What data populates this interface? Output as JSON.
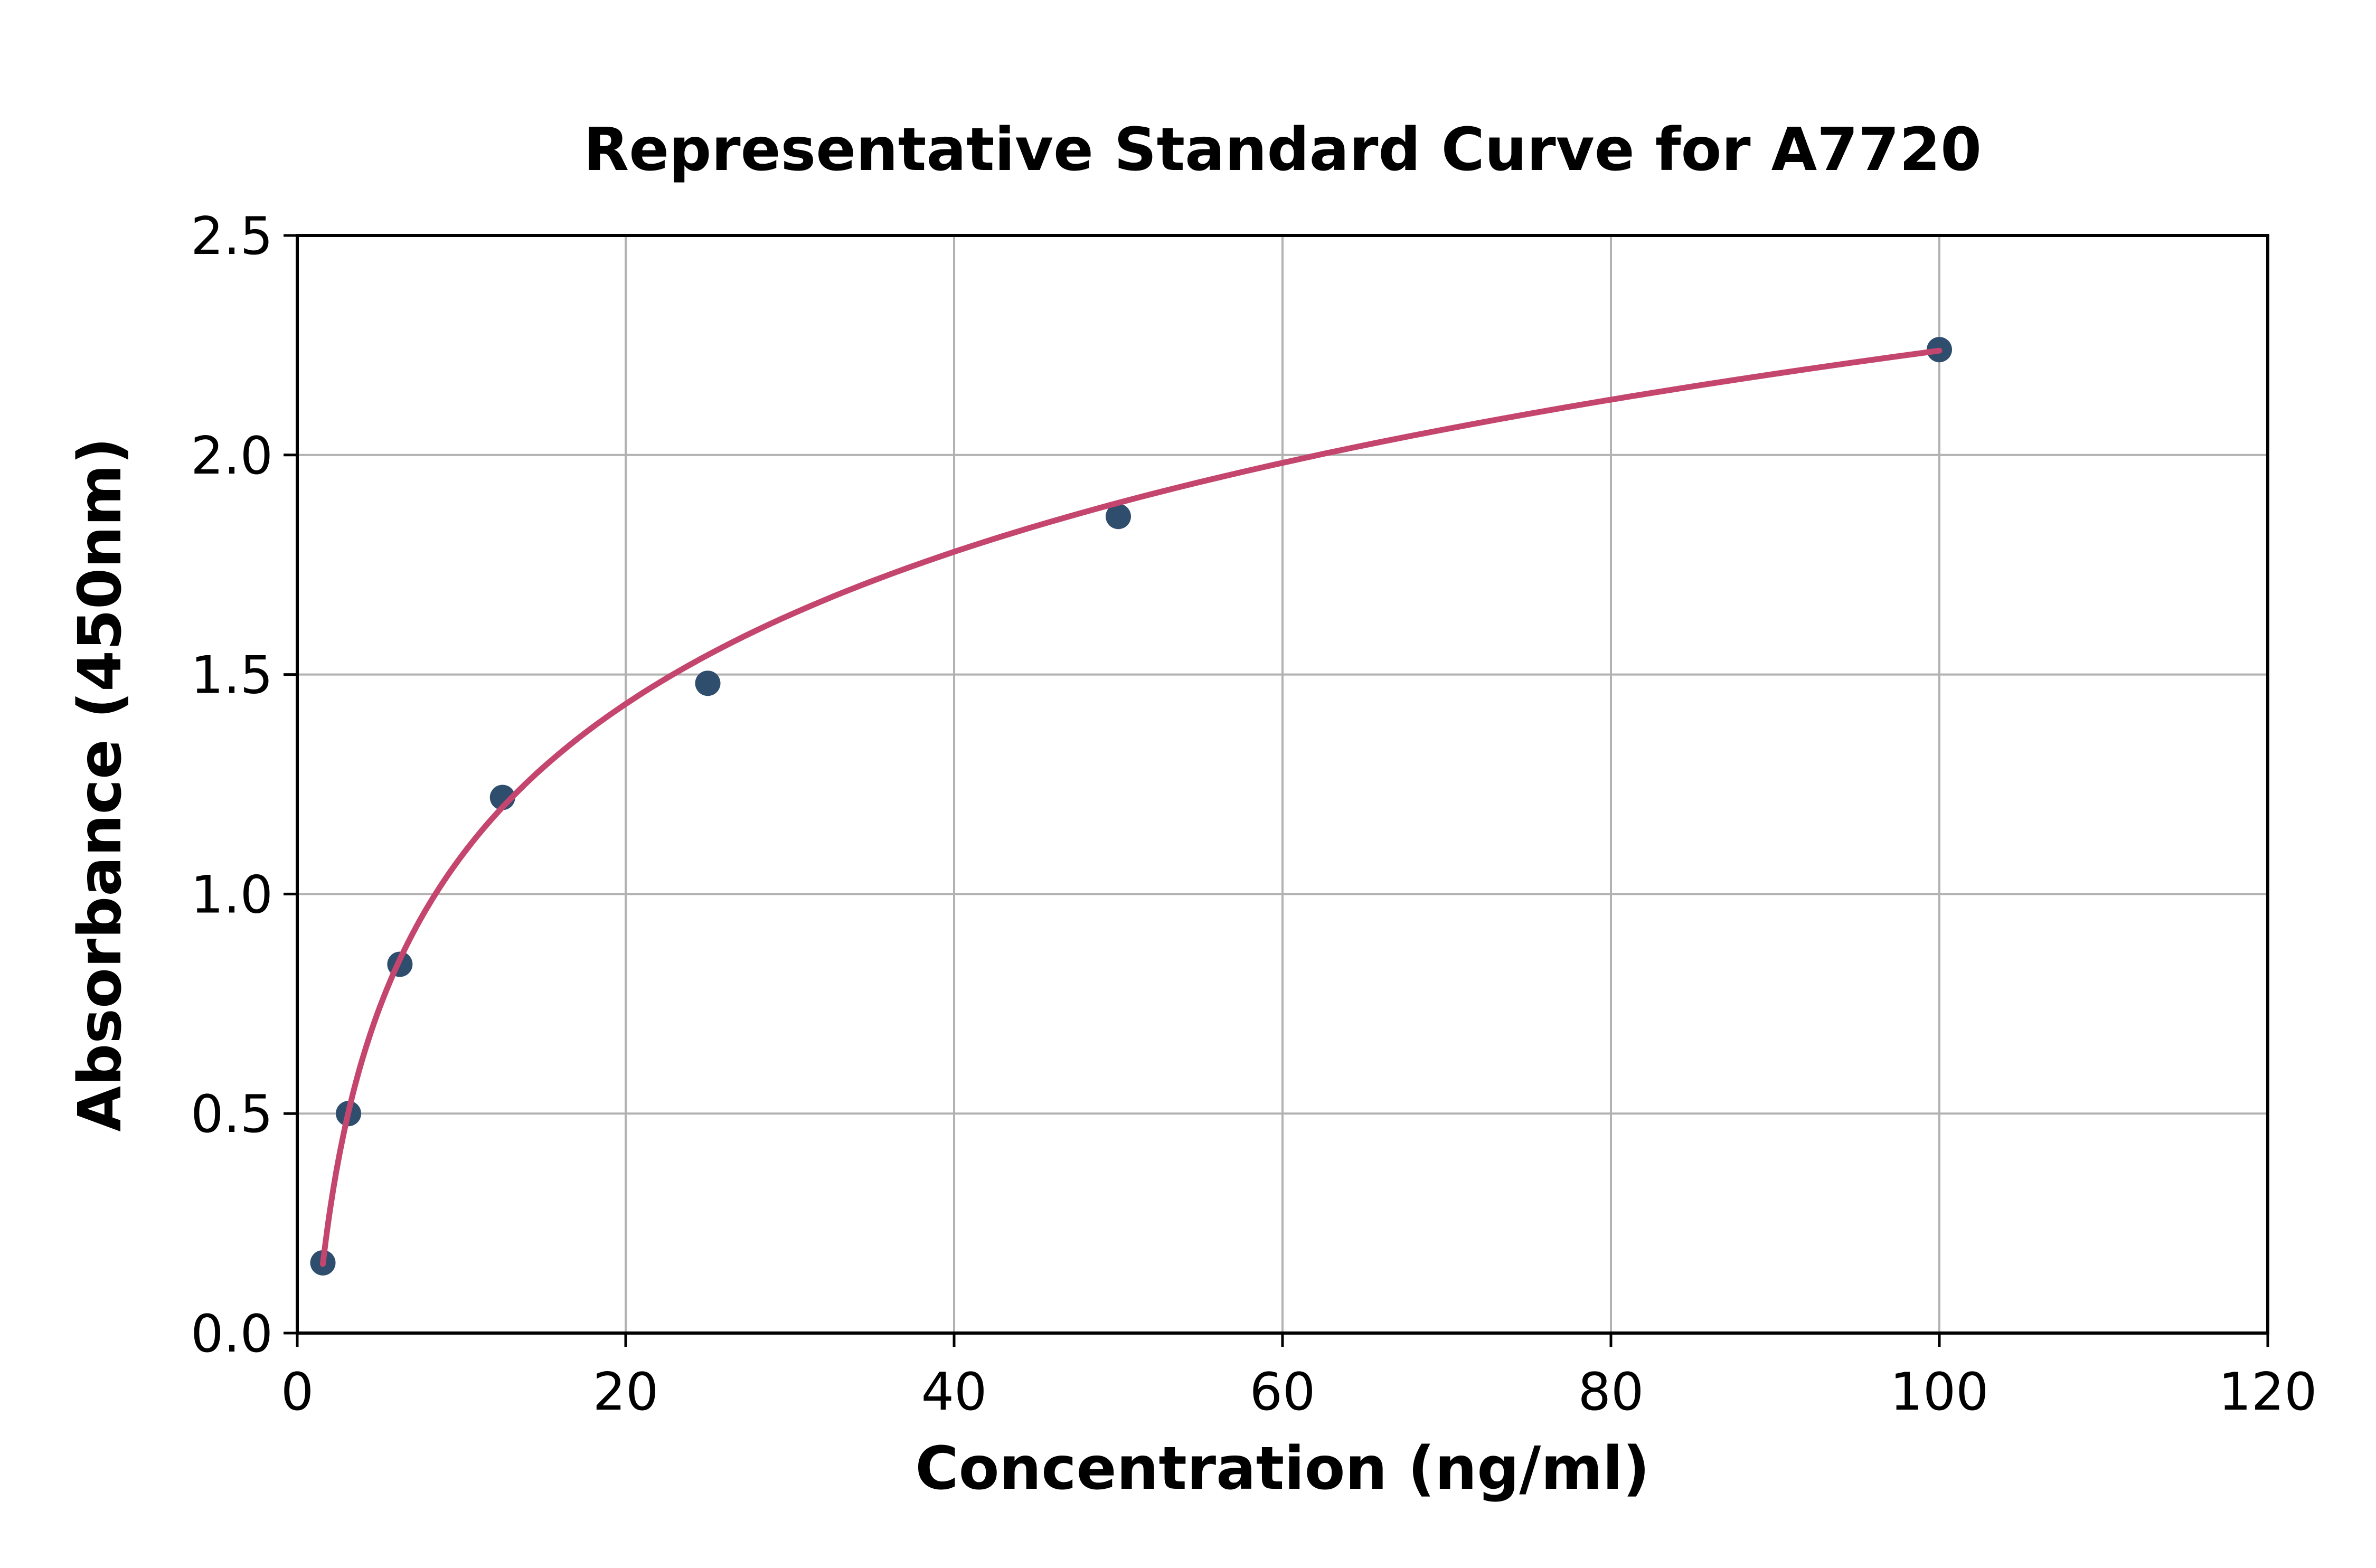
{
  "figure": {
    "background": "#ffffff"
  },
  "chart_data": {
    "type": "scatter",
    "title": "Representative Standard Curve for A7720",
    "xlabel": "Concentration (ng/ml)",
    "ylabel": "Absorbance (450nm)",
    "xlim": [
      0,
      120
    ],
    "ylim": [
      0,
      2.5
    ],
    "xticks": [
      0,
      20,
      40,
      60,
      80,
      100,
      120
    ],
    "xtick_labels": [
      "0",
      "20",
      "40",
      "60",
      "80",
      "100",
      "120"
    ],
    "yticks": [
      0,
      0.5,
      1.0,
      1.5,
      2.0,
      2.5
    ],
    "ytick_labels": [
      "0.0",
      "0.5",
      "1.0",
      "1.5",
      "2.0",
      "2.5"
    ],
    "grid": true,
    "legend": "none",
    "points": {
      "x": [
        1.56,
        3.12,
        6.25,
        12.5,
        25,
        50,
        100
      ],
      "y": [
        0.16,
        0.5,
        0.84,
        1.22,
        1.48,
        1.86,
        2.24
      ]
    },
    "fit_curve": {
      "type": "logarithmic",
      "equation": "y = a*ln(x) + b",
      "a": 0.5,
      "b": -0.065,
      "x_start": 1.56,
      "x_end": 100
    },
    "colors": {
      "curve": "#c4466e",
      "points": "#2f4d6d",
      "grid": "#b2b2b2",
      "axis": "#000000",
      "text": "#000000",
      "background": "#ffffff"
    }
  }
}
